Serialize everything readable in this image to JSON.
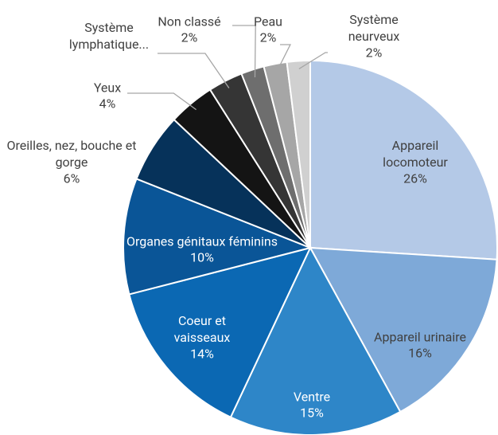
{
  "chart_data": {
    "type": "pie",
    "categories": [
      "Appareil locomoteur",
      "Appareil urinaire",
      "Ventre",
      "Coeur et vaisseaux",
      "Organes génitaux féminins",
      "Oreilles, nez, bouche et gorge",
      "Yeux",
      "Système lymphatique...",
      "Non classé",
      "Peau",
      "Système neurveux"
    ],
    "values": [
      26,
      16,
      15,
      14,
      10,
      6,
      4,
      3,
      2,
      2,
      2
    ],
    "value_labels": [
      "26%",
      "16%",
      "15%",
      "14%",
      "10%",
      "6%",
      "4%",
      null,
      "2%",
      "2%",
      "2%"
    ],
    "colors": [
      "#b4c9e7",
      "#7ea9d8",
      "#2e86c8",
      "#0b68b3",
      "#0a5597",
      "#06325a",
      "#141414",
      "#353535",
      "#6e6e6e",
      "#a6a6a6",
      "#d0d0d0"
    ]
  }
}
